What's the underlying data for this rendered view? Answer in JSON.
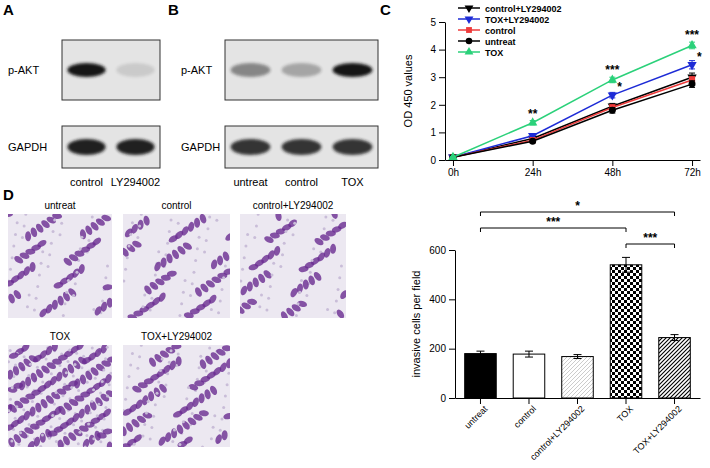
{
  "panel_labels": [
    "A",
    "B",
    "C",
    "D"
  ],
  "blots": [
    {
      "rows": [
        "p-AKT",
        "GAPDH"
      ],
      "lanes": [
        "control",
        "LY294002"
      ]
    },
    {
      "rows": [
        "p-AKT",
        "GAPDH"
      ],
      "lanes": [
        "untreat",
        "control",
        "TOX"
      ]
    }
  ],
  "images": {
    "labels": [
      "untreat",
      "control",
      "control+LY294002",
      "TOX",
      "TOX+LY294002"
    ]
  },
  "chart_data": [
    {
      "type": "line",
      "y_label": "OD 450 values",
      "categories": [
        "0h",
        "24h",
        "48h",
        "72h"
      ],
      "ylim": [
        0,
        5
      ],
      "yticks": [
        0,
        1,
        2,
        3,
        4,
        5
      ],
      "legend": "upper left",
      "series": [
        {
          "name": "control+LY294002",
          "color": "#000000",
          "marker": "triangle-down",
          "values": [
            0.1,
            0.78,
            1.95,
            3.0
          ],
          "errors": [
            0.02,
            0.07,
            0.1,
            0.15
          ]
        },
        {
          "name": "TOX+LY294002",
          "color": "#1d2bd6",
          "marker": "triangle-down",
          "values": [
            0.1,
            0.88,
            2.35,
            3.45
          ],
          "errors": [
            0.02,
            0.07,
            0.1,
            0.15
          ]
        },
        {
          "name": "control",
          "color": "#ee3b3b",
          "marker": "square",
          "values": [
            0.1,
            0.72,
            1.9,
            2.9
          ],
          "errors": [
            0.02,
            0.06,
            0.1,
            0.12
          ]
        },
        {
          "name": "untreat",
          "color": "#000000",
          "marker": "circle",
          "values": [
            0.1,
            0.68,
            1.8,
            2.75
          ],
          "errors": [
            0.02,
            0.06,
            0.1,
            0.12
          ]
        },
        {
          "name": "TOX",
          "color": "#2bd17a",
          "marker": "triangle-up",
          "values": [
            0.1,
            1.35,
            2.9,
            4.15
          ],
          "errors": [
            0.02,
            0.08,
            0.1,
            0.12
          ]
        }
      ],
      "annotations": [
        {
          "text": "**",
          "x": "24h",
          "series": "TOX"
        },
        {
          "text": "***",
          "x": "48h",
          "series": "TOX"
        },
        {
          "text": "***",
          "x": "72h",
          "series": "TOX"
        },
        {
          "text": "*",
          "x": "48h",
          "series": "TOX+LY294002"
        },
        {
          "text": "*",
          "x": "72h",
          "series": "TOX+LY294002"
        }
      ]
    },
    {
      "type": "bar",
      "y_label": "invasive cells per field",
      "categories": [
        "untreat",
        "control",
        "control+LY294002",
        "TOX",
        "TOX+LY294002"
      ],
      "values": [
        180,
        178,
        168,
        540,
        245
      ],
      "errors": [
        10,
        12,
        8,
        30,
        12
      ],
      "colors": [
        "#000000",
        "#ffffff",
        "#ffffff",
        "#ffffff",
        "#ffffff"
      ],
      "ylim": [
        0,
        600
      ],
      "yticks": [
        0,
        200,
        400,
        600
      ],
      "comparisons": [
        {
          "from": "untreat",
          "to": "TOX+LY294002",
          "label": "*"
        },
        {
          "from": "untreat",
          "to": "TOX",
          "label": "***"
        },
        {
          "from": "TOX",
          "to": "TOX+LY294002",
          "label": "***"
        }
      ]
    }
  ]
}
